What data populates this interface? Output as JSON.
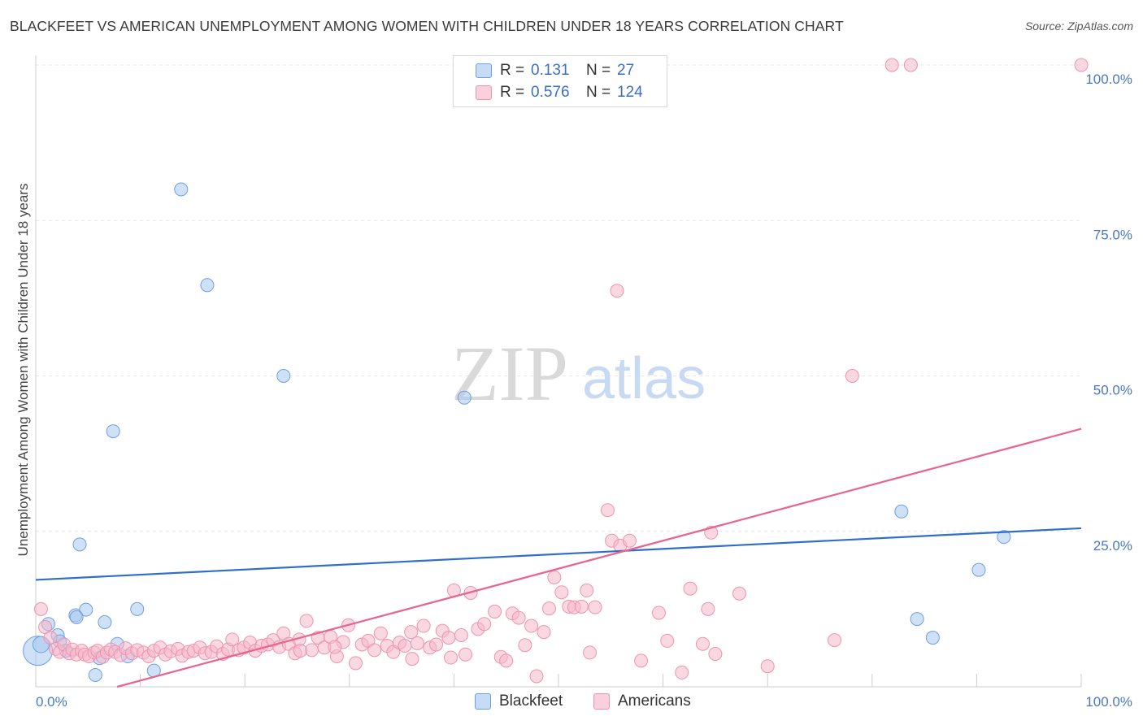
{
  "header": {
    "title": "BLACKFEET VS AMERICAN UNEMPLOYMENT AMONG WOMEN WITH CHILDREN UNDER 18 YEARS CORRELATION CHART",
    "source": "Source: ZipAtlas.com"
  },
  "watermark": {
    "zip": "ZIP",
    "atlas": "atlas"
  },
  "legend": {
    "rows": [
      {
        "r_label": "R =",
        "r_value": "0.131",
        "n_label": "N =",
        "n_value": "27",
        "color": "#a8c8f0"
      },
      {
        "r_label": "R =",
        "r_value": "0.576",
        "n_label": "N =",
        "n_value": "124",
        "color": "#f6b8cb"
      }
    ]
  },
  "bottom_legend": {
    "blackfeet": "Blackfeet",
    "americans": "Americans"
  },
  "chart_data": {
    "type": "scatter",
    "title": "BLACKFEET VS AMERICAN UNEMPLOYMENT AMONG WOMEN WITH CHILDREN UNDER 18 YEARS CORRELATION CHART",
    "xlabel": "",
    "ylabel": "Unemployment Among Women with Children Under 18 years",
    "xlim": [
      0,
      100
    ],
    "ylim": [
      0,
      100
    ],
    "x_tick_labels": [
      {
        "value": 0,
        "label": "0.0%"
      },
      {
        "value": 100,
        "label": "100.0%"
      }
    ],
    "y_tick_labels": [
      {
        "value": 25,
        "label": "25.0%"
      },
      {
        "value": 50,
        "label": "50.0%"
      },
      {
        "value": 75,
        "label": "75.0%"
      },
      {
        "value": 100,
        "label": "100.0%"
      }
    ],
    "grid": true,
    "legend_position": "top-center",
    "series": [
      {
        "name": "Blackfeet",
        "color": "#a8c8f0",
        "stroke": "#6f9fe0",
        "line_color": "#2f6fcb",
        "r": 0.131,
        "n": 27,
        "trend": {
          "x0": 0,
          "y0": 17.2,
          "x1": 100,
          "y1": 25.5
        },
        "points": [
          [
            0.2,
            5.8,
            18
          ],
          [
            0.5,
            6.8,
            10
          ],
          [
            1.2,
            10.1,
            8
          ],
          [
            2.1,
            8.3,
            8
          ],
          [
            2.3,
            7.3,
            8
          ],
          [
            2.9,
            5.8,
            8
          ],
          [
            3.8,
            11.5,
            8
          ],
          [
            4.2,
            22.9,
            8
          ],
          [
            4.8,
            12.4,
            8
          ],
          [
            3.9,
            11.2,
            8
          ],
          [
            6.6,
            10.4,
            8
          ],
          [
            5.7,
            1.9,
            8
          ],
          [
            6.1,
            4.6,
            8
          ],
          [
            7.4,
            41.1,
            8
          ],
          [
            7.8,
            6.9,
            8
          ],
          [
            8.8,
            4.9,
            8
          ],
          [
            9.7,
            12.5,
            8
          ],
          [
            11.3,
            2.6,
            8
          ],
          [
            13.9,
            80.0,
            8
          ],
          [
            16.4,
            64.6,
            8
          ],
          [
            23.7,
            50.0,
            8
          ],
          [
            41.0,
            46.5,
            8
          ],
          [
            82.8,
            28.2,
            8
          ],
          [
            84.3,
            10.9,
            8
          ],
          [
            85.8,
            7.9,
            8
          ],
          [
            90.2,
            18.8,
            8
          ],
          [
            92.6,
            24.1,
            8
          ]
        ]
      },
      {
        "name": "Americans",
        "color": "#f6b8cb",
        "stroke": "#ee93ae",
        "line_color": "#e8658f",
        "r": 0.576,
        "n": 124,
        "trend": {
          "x0": 0,
          "y0": -3.5,
          "x1": 100,
          "y1": 41.5
        },
        "points": [
          [
            0.5,
            12.5,
            8
          ],
          [
            0.9,
            9.6,
            8
          ],
          [
            1.4,
            7.9,
            8
          ],
          [
            1.9,
            6.1,
            8
          ],
          [
            2.3,
            5.6,
            8
          ],
          [
            2.7,
            6.8,
            8
          ],
          [
            3.2,
            5.4,
            8
          ],
          [
            3.5,
            6.0,
            8
          ],
          [
            3.9,
            5.2,
            8
          ],
          [
            4.4,
            5.8,
            8
          ],
          [
            4.7,
            5.2,
            8
          ],
          [
            5.1,
            4.9,
            8
          ],
          [
            5.6,
            5.5,
            8
          ],
          [
            5.9,
            5.8,
            8
          ],
          [
            6.4,
            4.8,
            8
          ],
          [
            6.8,
            5.5,
            8
          ],
          [
            7.2,
            6.0,
            8
          ],
          [
            7.6,
            5.6,
            8
          ],
          [
            8.1,
            5.1,
            8
          ],
          [
            8.6,
            6.2,
            8
          ],
          [
            9.2,
            5.4,
            8
          ],
          [
            9.7,
            5.9,
            8
          ],
          [
            10.3,
            5.5,
            8
          ],
          [
            10.8,
            4.9,
            8
          ],
          [
            11.3,
            5.8,
            8
          ],
          [
            11.9,
            6.3,
            8
          ],
          [
            12.4,
            5.2,
            8
          ],
          [
            12.9,
            5.7,
            8
          ],
          [
            13.6,
            6.1,
            8
          ],
          [
            14.0,
            5.0,
            8
          ],
          [
            14.6,
            5.6,
            8
          ],
          [
            15.1,
            5.8,
            8
          ],
          [
            15.7,
            6.3,
            8
          ],
          [
            16.2,
            5.4,
            8
          ],
          [
            16.8,
            5.6,
            8
          ],
          [
            17.3,
            6.5,
            8
          ],
          [
            17.9,
            5.3,
            8
          ],
          [
            18.4,
            6.0,
            8
          ],
          [
            18.8,
            7.6,
            8
          ],
          [
            19.4,
            5.9,
            8
          ],
          [
            19.9,
            6.3,
            8
          ],
          [
            20.5,
            7.1,
            8
          ],
          [
            21.0,
            5.8,
            8
          ],
          [
            21.6,
            6.6,
            8
          ],
          [
            22.2,
            6.8,
            8
          ],
          [
            22.7,
            7.5,
            8
          ],
          [
            23.3,
            6.4,
            8
          ],
          [
            23.7,
            8.6,
            8
          ],
          [
            24.2,
            6.9,
            8
          ],
          [
            24.8,
            5.4,
            8
          ],
          [
            25.2,
            7.6,
            8
          ],
          [
            25.9,
            10.6,
            8
          ],
          [
            26.4,
            5.9,
            8
          ],
          [
            27.0,
            7.9,
            8
          ],
          [
            27.6,
            6.3,
            8
          ],
          [
            28.2,
            8.0,
            8
          ],
          [
            28.8,
            4.9,
            8
          ],
          [
            29.4,
            7.2,
            8
          ],
          [
            29.9,
            9.9,
            8
          ],
          [
            30.6,
            3.8,
            8
          ],
          [
            31.2,
            6.8,
            8
          ],
          [
            31.8,
            7.4,
            8
          ],
          [
            32.4,
            5.9,
            8
          ],
          [
            33.0,
            8.6,
            8
          ],
          [
            33.6,
            6.6,
            8
          ],
          [
            34.2,
            5.6,
            8
          ],
          [
            34.8,
            7.1,
            8
          ],
          [
            35.3,
            6.6,
            8
          ],
          [
            35.9,
            8.8,
            8
          ],
          [
            36.5,
            7.0,
            8
          ],
          [
            37.1,
            9.8,
            8
          ],
          [
            37.7,
            6.3,
            8
          ],
          [
            38.3,
            6.8,
            8
          ],
          [
            38.9,
            9.0,
            8
          ],
          [
            39.5,
            7.9,
            8
          ],
          [
            40.0,
            15.5,
            8
          ],
          [
            40.7,
            8.3,
            8
          ],
          [
            41.1,
            5.2,
            8
          ],
          [
            41.6,
            15.1,
            8
          ],
          [
            42.3,
            9.3,
            8
          ],
          [
            42.9,
            10.1,
            8
          ],
          [
            43.9,
            12.1,
            8
          ],
          [
            44.5,
            4.8,
            8
          ],
          [
            45.0,
            4.2,
            8
          ],
          [
            45.6,
            11.8,
            8
          ],
          [
            46.2,
            11.1,
            8
          ],
          [
            46.8,
            6.7,
            8
          ],
          [
            47.4,
            9.8,
            8
          ],
          [
            47.9,
            1.7,
            8
          ],
          [
            48.6,
            8.8,
            8
          ],
          [
            49.1,
            12.6,
            8
          ],
          [
            49.6,
            17.6,
            8
          ],
          [
            50.3,
            15.2,
            8
          ],
          [
            51.0,
            12.9,
            8
          ],
          [
            51.5,
            12.8,
            8
          ],
          [
            52.2,
            12.9,
            8
          ],
          [
            52.7,
            15.5,
            8
          ],
          [
            53.0,
            5.5,
            8
          ],
          [
            53.5,
            12.8,
            8
          ],
          [
            54.7,
            28.4,
            8
          ],
          [
            55.1,
            23.5,
            8
          ],
          [
            55.9,
            22.7,
            8
          ],
          [
            55.6,
            63.7,
            8
          ],
          [
            56.8,
            23.5,
            8
          ],
          [
            57.9,
            4.2,
            8
          ],
          [
            59.6,
            11.9,
            8
          ],
          [
            60.4,
            7.4,
            8
          ],
          [
            61.8,
            2.3,
            8
          ],
          [
            62.6,
            15.8,
            8
          ],
          [
            63.8,
            6.9,
            8
          ],
          [
            64.3,
            12.5,
            8
          ],
          [
            64.6,
            24.8,
            8
          ],
          [
            65.0,
            5.3,
            8
          ],
          [
            67.3,
            15.0,
            8
          ],
          [
            70.0,
            3.3,
            8
          ],
          [
            76.4,
            7.5,
            8
          ],
          [
            78.1,
            50.0,
            8
          ],
          [
            81.9,
            100.0,
            8
          ],
          [
            83.7,
            100.0,
            8
          ],
          [
            100.0,
            100.0,
            8
          ],
          [
            25.3,
            5.8,
            8
          ],
          [
            28.6,
            6.4,
            8
          ],
          [
            36.0,
            4.5,
            8
          ],
          [
            39.7,
            4.7,
            8
          ]
        ]
      }
    ]
  }
}
